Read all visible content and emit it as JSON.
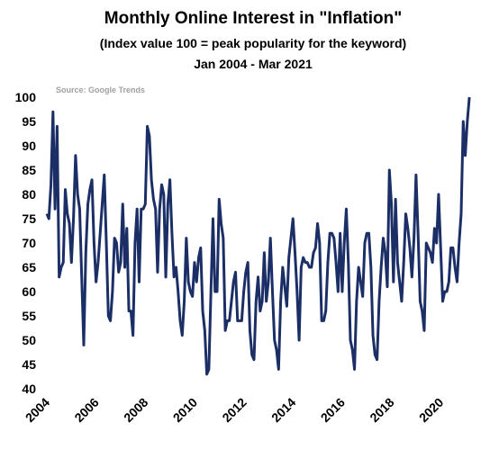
{
  "chart_data": {
    "type": "line",
    "title": "Monthly Online Interest in \"Inflation\"",
    "subtitle": "(Index value 100 = peak popularity for the keyword)",
    "date_range": "Jan 2004 - Mar 2021",
    "annotation": "Source:  Google Trends",
    "color": "#1b2f66",
    "xlim": [
      2004,
      2021.2
    ],
    "xticks": [
      2004,
      2006,
      2008,
      2010,
      2012,
      2014,
      2016,
      2018,
      2020
    ],
    "ylim": [
      40,
      100
    ],
    "yticks": [
      40,
      45,
      50,
      55,
      60,
      65,
      70,
      75,
      80,
      85,
      90,
      95,
      100
    ],
    "x": [
      2004,
      2004.083,
      2004.167,
      2004.25,
      2004.333,
      2004.417,
      2004.5,
      2004.583,
      2004.667,
      2004.75,
      2004.833,
      2004.917,
      2005,
      2005.083,
      2005.167,
      2005.25,
      2005.333,
      2005.417,
      2005.5,
      2005.583,
      2005.667,
      2005.75,
      2005.833,
      2005.917,
      2006,
      2006.083,
      2006.167,
      2006.25,
      2006.333,
      2006.417,
      2006.5,
      2006.583,
      2006.667,
      2006.75,
      2006.833,
      2006.917,
      2007,
      2007.083,
      2007.167,
      2007.25,
      2007.333,
      2007.417,
      2007.5,
      2007.583,
      2007.667,
      2007.75,
      2007.833,
      2007.917,
      2008,
      2008.083,
      2008.167,
      2008.25,
      2008.333,
      2008.417,
      2008.5,
      2008.583,
      2008.667,
      2008.75,
      2008.833,
      2008.917,
      2009,
      2009.083,
      2009.167,
      2009.25,
      2009.333,
      2009.417,
      2009.5,
      2009.583,
      2009.667,
      2009.75,
      2009.833,
      2009.917,
      2010,
      2010.083,
      2010.167,
      2010.25,
      2010.333,
      2010.417,
      2010.5,
      2010.583,
      2010.667,
      2010.75,
      2010.833,
      2010.917,
      2011,
      2011.083,
      2011.167,
      2011.25,
      2011.333,
      2011.417,
      2011.5,
      2011.583,
      2011.667,
      2011.75,
      2011.833,
      2011.917,
      2012,
      2012.083,
      2012.167,
      2012.25,
      2012.333,
      2012.417,
      2012.5,
      2012.583,
      2012.667,
      2012.75,
      2012.833,
      2012.917,
      2013,
      2013.083,
      2013.167,
      2013.25,
      2013.333,
      2013.417,
      2013.5,
      2013.583,
      2013.667,
      2013.75,
      2013.833,
      2013.917,
      2014,
      2014.083,
      2014.167,
      2014.25,
      2014.333,
      2014.417,
      2014.5,
      2014.583,
      2014.667,
      2014.75,
      2014.833,
      2014.917,
      2015,
      2015.083,
      2015.167,
      2015.25,
      2015.333,
      2015.417,
      2015.5,
      2015.583,
      2015.667,
      2015.75,
      2015.833,
      2015.917,
      2016,
      2016.083,
      2016.167,
      2016.25,
      2016.333,
      2016.417,
      2016.5,
      2016.583,
      2016.667,
      2016.75,
      2016.833,
      2016.917,
      2017,
      2017.083,
      2017.167,
      2017.25,
      2017.333,
      2017.417,
      2017.5,
      2017.583,
      2017.667,
      2017.75,
      2017.833,
      2017.917,
      2018,
      2018.083,
      2018.167,
      2018.25,
      2018.333,
      2018.417,
      2018.5,
      2018.583,
      2018.667,
      2018.75,
      2018.833,
      2018.917,
      2019,
      2019.083,
      2019.167,
      2019.25,
      2019.333,
      2019.417,
      2019.5,
      2019.583,
      2019.667,
      2019.75,
      2019.833,
      2019.917,
      2020,
      2020.083,
      2020.167,
      2020.25,
      2020.333,
      2020.417,
      2020.5,
      2020.583,
      2020.667,
      2020.75,
      2020.833,
      2020.917,
      2021,
      2021.083,
      2021.167
    ],
    "values": [
      76,
      75,
      82,
      97,
      77,
      94,
      63,
      65,
      66,
      81,
      76,
      74,
      66,
      75,
      88,
      80,
      77,
      63,
      49,
      68,
      78,
      81,
      83,
      70,
      62,
      66,
      72,
      78,
      84,
      70,
      55,
      54,
      60,
      71,
      70,
      64,
      66,
      78,
      65,
      73,
      56,
      56,
      51,
      70,
      77,
      62,
      77,
      77,
      78,
      94,
      92,
      83,
      79,
      77,
      64,
      77,
      82,
      80,
      63,
      78,
      83,
      72,
      63,
      65,
      60,
      54,
      51,
      58,
      71,
      62,
      60,
      59,
      66,
      62,
      67,
      69,
      56,
      52,
      43,
      44,
      60,
      75,
      60,
      60,
      79,
      74,
      71,
      52,
      54,
      54,
      58,
      62,
      64,
      54,
      54,
      54,
      60,
      64,
      66,
      52,
      47,
      46,
      58,
      63,
      56,
      58,
      68,
      58,
      62,
      71,
      60,
      50,
      48,
      44,
      58,
      65,
      61,
      57,
      67,
      71,
      75,
      68,
      60,
      50,
      65,
      67,
      66,
      66,
      65,
      65,
      68,
      69,
      74,
      70,
      54,
      54,
      56,
      66,
      72,
      72,
      71,
      66,
      60,
      72,
      60,
      70,
      77,
      66,
      50,
      48,
      44,
      58,
      65,
      62,
      59,
      70,
      72,
      72,
      65,
      51,
      47,
      46,
      58,
      65,
      71,
      68,
      61,
      85,
      78,
      62,
      79,
      66,
      62,
      58,
      66,
      76,
      73,
      69,
      63,
      71,
      84,
      72,
      58,
      56,
      52,
      70,
      69,
      68,
      66,
      73,
      70,
      80,
      69,
      58,
      60,
      60,
      62,
      69,
      69,
      65,
      62,
      70,
      76,
      95,
      88,
      95,
      100
    ]
  }
}
